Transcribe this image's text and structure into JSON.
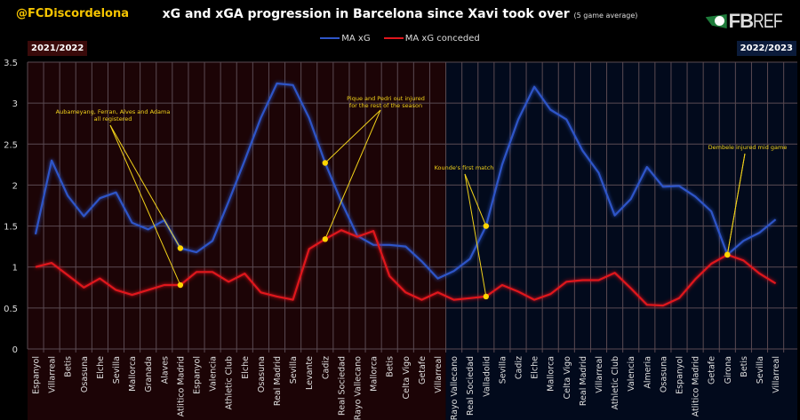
{
  "header": {
    "handle": "@FCDiscordelona",
    "title": "xG and xGA progression in Barcelona since Xavi took over",
    "subtitle": "(5 game average)",
    "logo_fb": "FB",
    "logo_ref": "REF"
  },
  "colors": {
    "xg": "#2e55c8",
    "xga": "#e0161c",
    "season1_bg": "#1c0406",
    "season2_bg": "#020a1c",
    "annotation": "#f2d21a",
    "handle": "#f5c400"
  },
  "chart_data": {
    "type": "line",
    "title": "xG and xGA progression in Barcelona since Xavi took over (5 game average)",
    "xlabel": "",
    "ylabel": "",
    "ylim": [
      0,
      3.5
    ],
    "yticks": [
      "0",
      "0.5",
      "1",
      "1.5",
      "2",
      "2.5",
      "3",
      "3.5"
    ],
    "grid": true,
    "legend": "top-center",
    "seasons": [
      {
        "label": "2021/2022",
        "count": 26
      },
      {
        "label": "2022/2023",
        "count": 21
      }
    ],
    "categories": [
      "Espanyol",
      "Villarreal",
      "Betis",
      "Osasuna",
      "Elche",
      "Sevilla",
      "Mallorca",
      "Granada",
      "Alaves",
      "Atlitico Madrid",
      "Espanyol",
      "Valencia",
      "Athletic Club",
      "Elche",
      "Osasuna",
      "Real Madrid",
      "Sevilla",
      "Levante",
      "Cadiz",
      "Real Sociedad",
      "Rayo Vallecano",
      "Mallorca",
      "Betis",
      "Celta Vigo",
      "Getafe",
      "Villarreal",
      "Rayo Vallecano",
      "Real Sociedad",
      "Valladolid",
      "Sevilla",
      "Cadiz",
      "Elche",
      "Mallorca",
      "Celta Vigo",
      "Real Madrid",
      "Villarreal",
      "Athletic Club",
      "Valencia",
      "Almeria",
      "Osasuna",
      "Espanyol",
      "Atlitico Madrid",
      "Getafe",
      "Girona",
      "Betis",
      "Sevilla",
      "Villarreal"
    ],
    "series": [
      {
        "name": "MA xG",
        "values": [
          1.4,
          2.3,
          1.87,
          1.62,
          1.84,
          1.91,
          1.54,
          1.46,
          1.57,
          1.23,
          1.18,
          1.32,
          1.8,
          2.3,
          2.82,
          3.24,
          3.22,
          2.82,
          2.27,
          1.8,
          1.38,
          1.27,
          1.27,
          1.25,
          1.07,
          0.86,
          0.95,
          1.1,
          1.5,
          2.25,
          2.8,
          3.2,
          2.92,
          2.8,
          2.42,
          2.15,
          1.63,
          1.83,
          2.22,
          1.98,
          1.99,
          1.86,
          1.68,
          1.15,
          1.32,
          1.42,
          1.58
        ]
      },
      {
        "name": "MA xG conceded",
        "values": [
          1.0,
          1.05,
          0.9,
          0.75,
          0.86,
          0.72,
          0.66,
          0.72,
          0.78,
          0.78,
          0.94,
          0.94,
          0.82,
          0.92,
          0.69,
          0.64,
          0.6,
          1.22,
          1.34,
          1.45,
          1.37,
          1.44,
          0.89,
          0.69,
          0.6,
          0.69,
          0.6,
          0.62,
          0.64,
          0.78,
          0.7,
          0.6,
          0.67,
          0.82,
          0.84,
          0.84,
          0.93,
          0.74,
          0.54,
          0.53,
          0.62,
          0.85,
          1.04,
          1.15,
          1.08,
          0.92,
          0.8
        ]
      }
    ],
    "annotations": [
      {
        "lines": [
          "Aubameyang, Ferran, Alves and Adama",
          "all registered"
        ],
        "index": 9
      },
      {
        "lines": [
          "Pique and Pedri out injured",
          "for the rest of the season"
        ],
        "index": 18
      },
      {
        "lines": [
          "Kounde's first match"
        ],
        "index": 28
      },
      {
        "lines": [
          "Dembele injured mid game"
        ],
        "index": 43
      }
    ]
  }
}
